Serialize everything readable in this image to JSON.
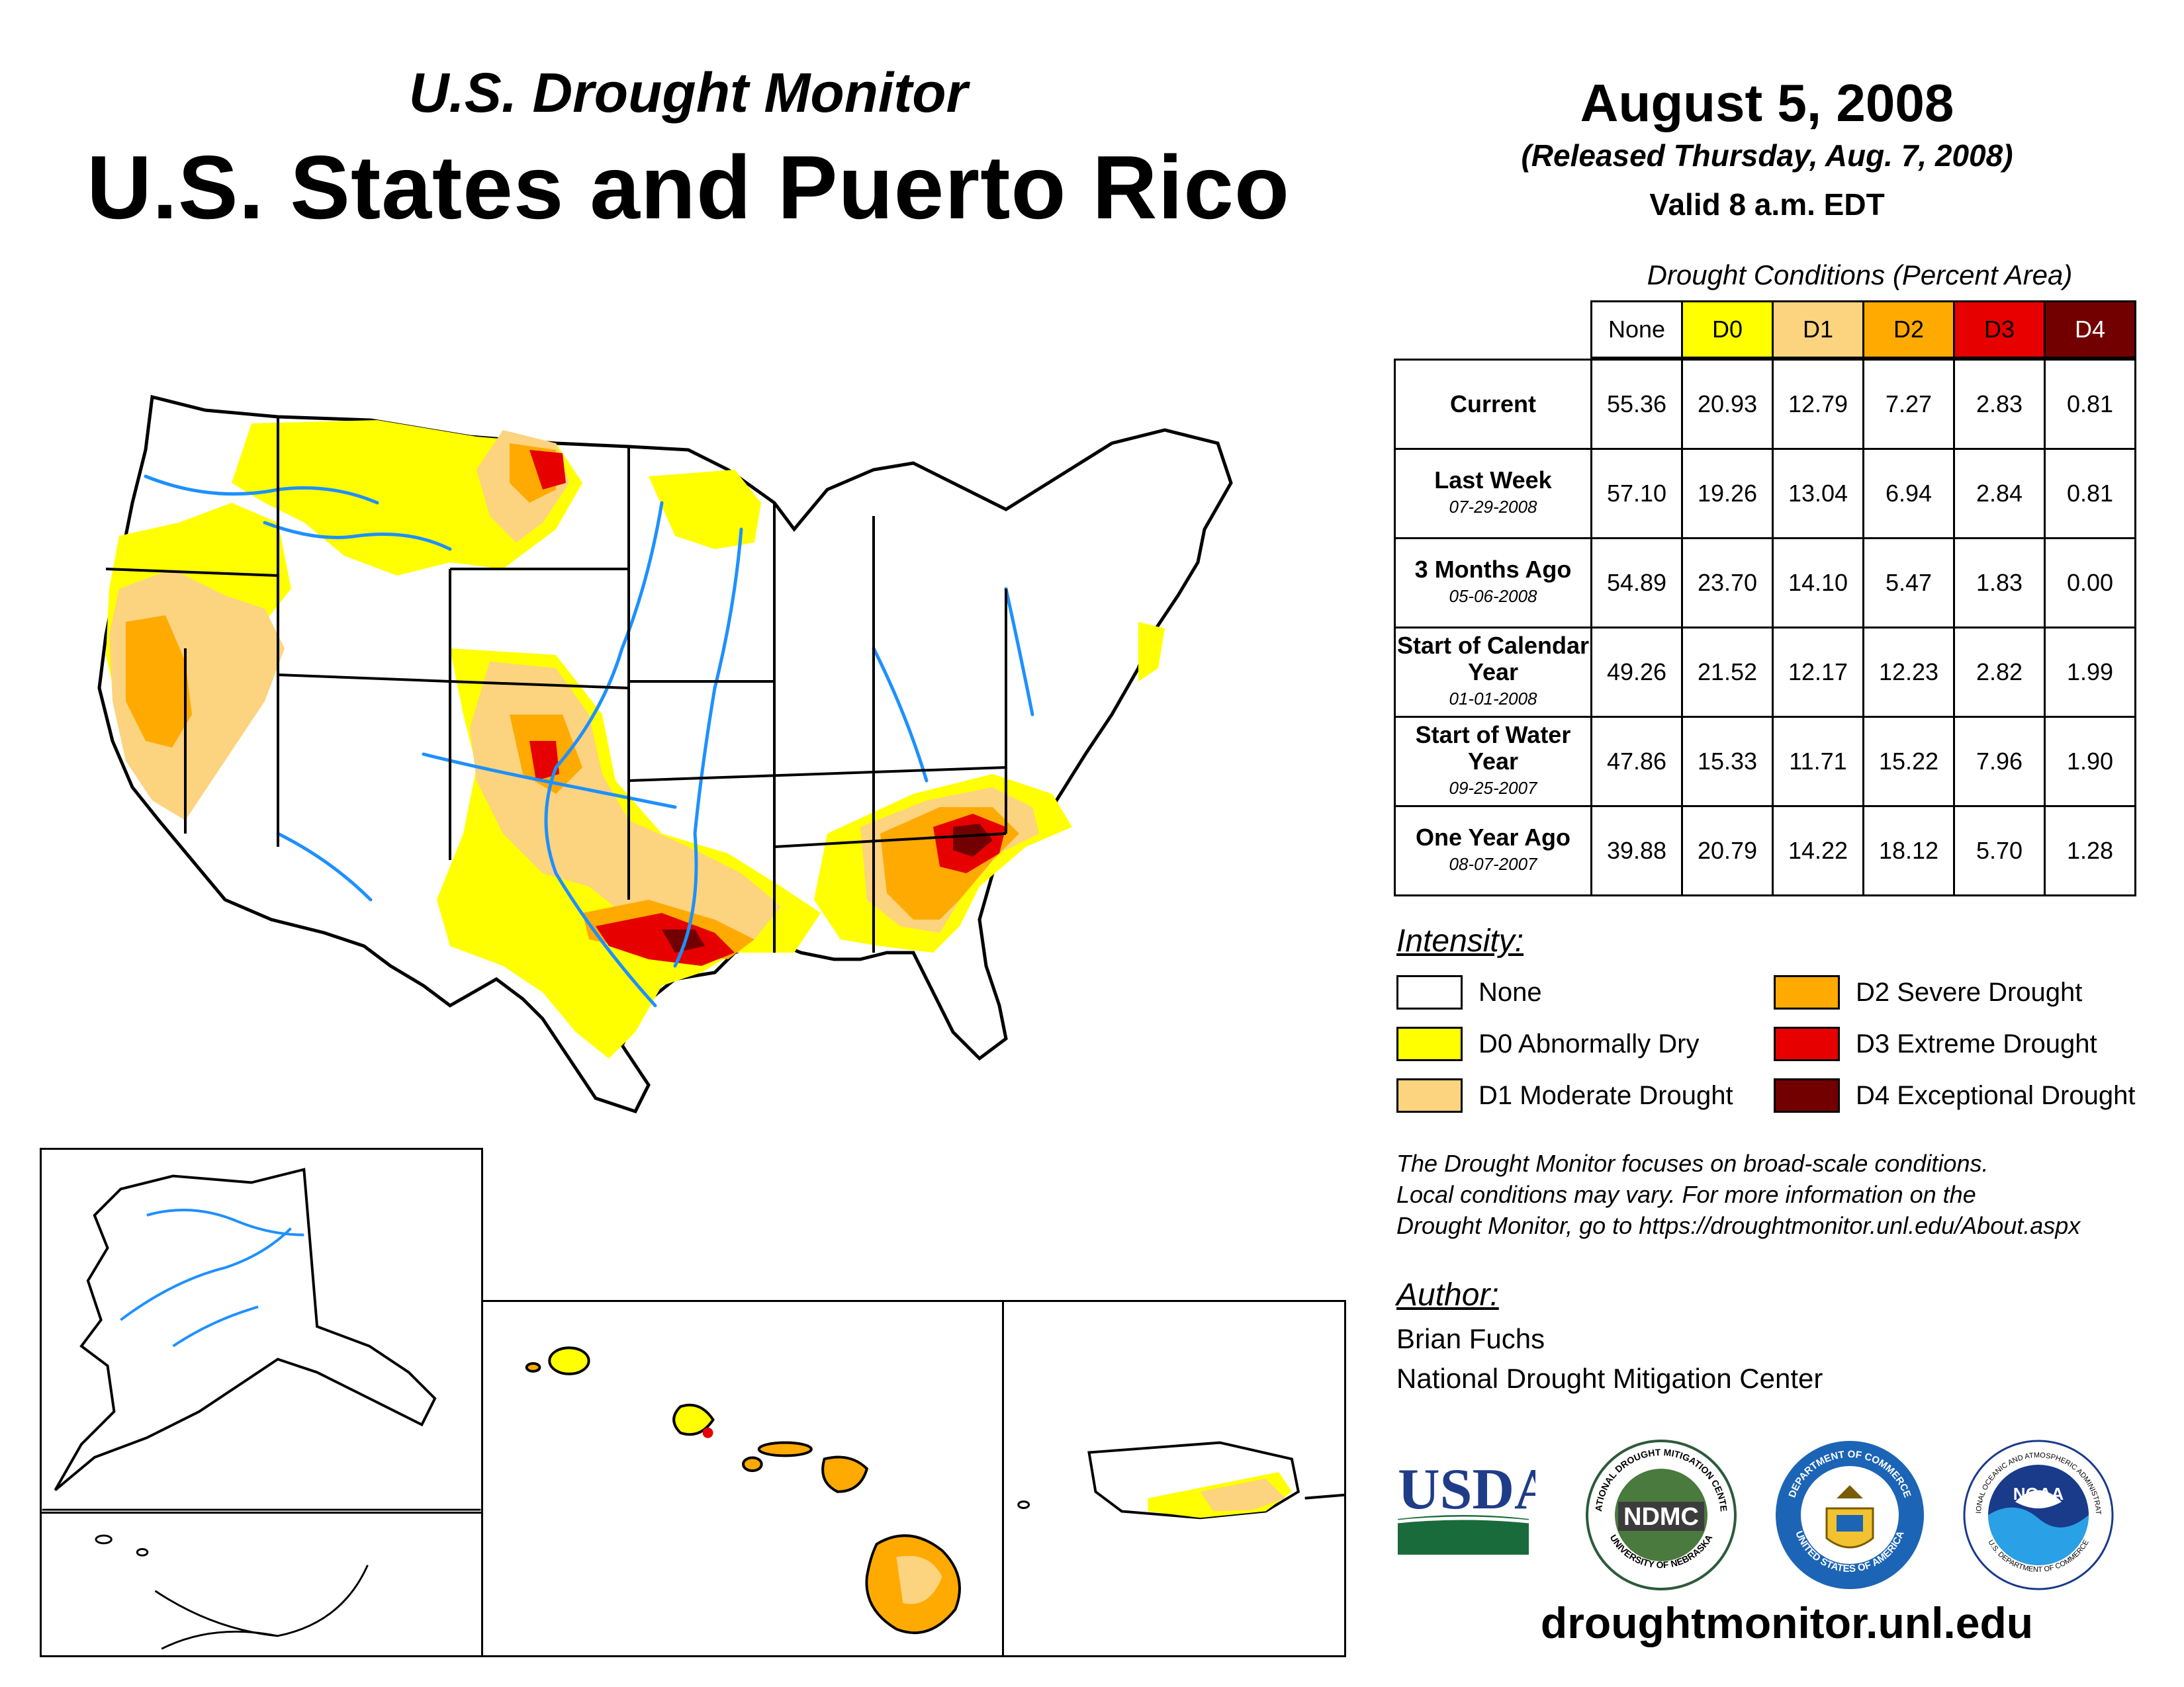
{
  "header": {
    "subtitle": "U.S. Drought Monitor",
    "title": "U.S. States and Puerto Rico",
    "date": "August 5, 2008",
    "released": "(Released Thursday, Aug. 7, 2008)",
    "valid": "Valid 8 a.m. EDT"
  },
  "table": {
    "caption": "Drought Conditions (Percent Area)",
    "columns": [
      "None",
      "D0",
      "D1",
      "D2",
      "D3",
      "D4"
    ],
    "rows": [
      {
        "label": "Current",
        "date": "",
        "values": [
          "55.36",
          "20.93",
          "12.79",
          "7.27",
          "2.83",
          "0.81"
        ]
      },
      {
        "label": "Last Week",
        "date": "07-29-2008",
        "values": [
          "57.10",
          "19.26",
          "13.04",
          "6.94",
          "2.84",
          "0.81"
        ]
      },
      {
        "label": "3 Months Ago",
        "date": "05-06-2008",
        "values": [
          "54.89",
          "23.70",
          "14.10",
          "5.47",
          "1.83",
          "0.00"
        ]
      },
      {
        "label": "Start of Calendar Year",
        "date": "01-01-2008",
        "values": [
          "49.26",
          "21.52",
          "12.17",
          "12.23",
          "2.82",
          "1.99"
        ]
      },
      {
        "label": "Start of Water Year",
        "date": "09-25-2007",
        "values": [
          "47.86",
          "15.33",
          "11.71",
          "15.22",
          "7.96",
          "1.90"
        ]
      },
      {
        "label": "One Year Ago",
        "date": "08-07-2007",
        "values": [
          "39.88",
          "20.79",
          "14.22",
          "18.12",
          "5.70",
          "1.28"
        ]
      }
    ]
  },
  "legend": {
    "title": "Intensity:",
    "items": [
      {
        "label": "None",
        "color": "#ffffff"
      },
      {
        "label": "D0 Abnormally Dry",
        "color": "#ffff00"
      },
      {
        "label": "D1 Moderate Drought",
        "color": "#fcd37f"
      },
      {
        "label": "D2 Severe Drought",
        "color": "#ffaa00"
      },
      {
        "label": "D3 Extreme Drought",
        "color": "#e60000"
      },
      {
        "label": "D4 Exceptional Drought",
        "color": "#730000"
      }
    ]
  },
  "note": {
    "line1": "The Drought Monitor focuses on broad-scale conditions.",
    "line2": "Local conditions may vary. For more information on the",
    "line3": "Drought Monitor, go to https://droughtmonitor.unl.edu/About.aspx"
  },
  "author": {
    "label": "Author:",
    "name": "Brian Fuchs",
    "org": "National Drought Mitigation Center"
  },
  "logos": {
    "usda": "USDA",
    "ndmc": "NDMC",
    "ndmc_ring_top": "NATIONAL DROUGHT MITIGATION CENTER",
    "ndmc_ring_bottom": "UNIVERSITY OF NEBRASKA",
    "commerce_ring_top": "DEPARTMENT OF COMMERCE",
    "commerce_ring_bottom": "UNITED STATES OF AMERICA",
    "noaa": "NOAA",
    "noaa_ring_top": "NATIONAL OCEANIC AND ATMOSPHERIC ADMINISTRATION",
    "noaa_ring_bottom": "U.S. DEPARTMENT OF COMMERCE"
  },
  "website": "droughtmonitor.unl.edu",
  "colors": {
    "none": "#ffffff",
    "d0": "#ffff00",
    "d1": "#fcd37f",
    "d2": "#ffaa00",
    "d3": "#e60000",
    "d4": "#730000",
    "river": "#1e90ff"
  }
}
